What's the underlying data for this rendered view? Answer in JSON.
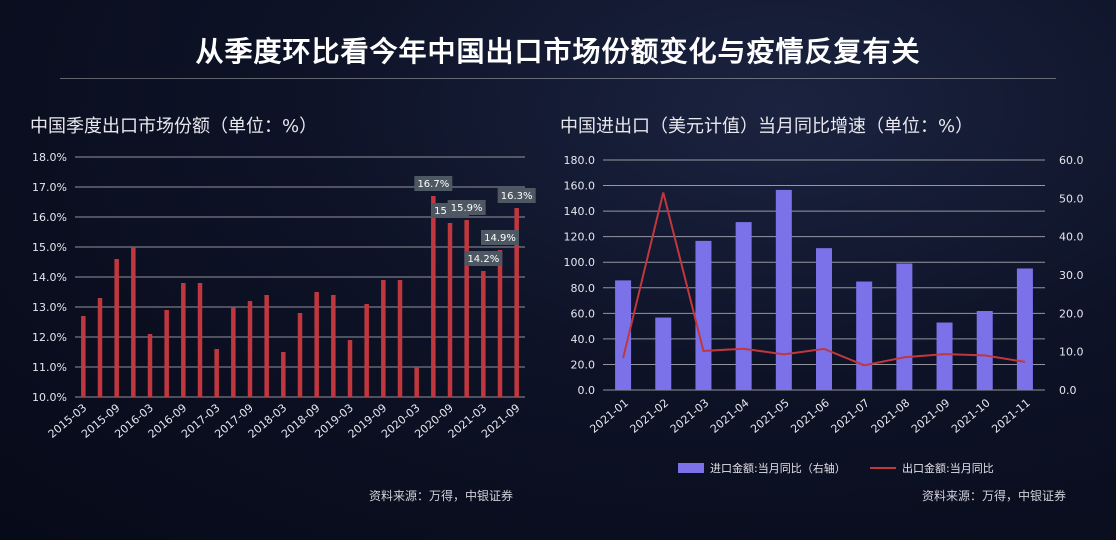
{
  "page": {
    "title": "从季度环比看今年中国出口市场份额变化与疫情反复有关"
  },
  "left_panel": {
    "title": "中国季度出口市场份额（单位：%）",
    "source": "资料来源：万得，中银证券"
  },
  "right_panel": {
    "title": "中国进出口（美元计值）当月同比增速（单位：%）",
    "source": "资料来源：万得，中银证券",
    "legend_bar": "进口金额:当月同比（右轴）",
    "legend_line": "出口金额:当月同比"
  },
  "colors": {
    "bar_left": "#c1373e",
    "bar_right": "#7b72e9",
    "line": "#c1373e",
    "label_box": "#4e5863"
  },
  "chart_data": [
    {
      "type": "bar",
      "title": "中国季度出口市场份额（单位：%）",
      "categories": [
        "2015-03",
        "2015-06",
        "2015-09",
        "2015-12",
        "2016-03",
        "2016-06",
        "2016-09",
        "2016-12",
        "2017-03",
        "2017-06",
        "2017-09",
        "2017-12",
        "2018-03",
        "2018-06",
        "2018-09",
        "2018-12",
        "2019-03",
        "2019-06",
        "2019-09",
        "2019-12",
        "2020-03",
        "2020-06",
        "2020-09",
        "2020-12",
        "2021-03",
        "2021-06",
        "2021-09"
      ],
      "tick_labels": [
        "2015-03",
        "2015-09",
        "2016-03",
        "2016-09",
        "2017-03",
        "2017-09",
        "2018-03",
        "2018-09",
        "2019-03",
        "2019-09",
        "2020-03",
        "2020-09",
        "2021-03",
        "2021-09"
      ],
      "values": [
        12.7,
        13.3,
        14.6,
        15.0,
        12.1,
        12.9,
        13.8,
        13.8,
        11.6,
        13.0,
        13.2,
        13.4,
        11.5,
        12.8,
        13.5,
        13.4,
        11.9,
        13.1,
        13.9,
        13.9,
        11.0,
        16.7,
        15.8,
        15.9,
        14.2,
        14.9,
        16.3
      ],
      "data_labels": [
        {
          "index": 21,
          "text": "16.7%"
        },
        {
          "index": 22,
          "text": "15.8%"
        },
        {
          "index": 23,
          "text": "15.9%"
        },
        {
          "index": 24,
          "text": "14.2%"
        },
        {
          "index": 25,
          "text": "14.9%"
        },
        {
          "index": 26,
          "text": "16.3%"
        }
      ],
      "ylim": [
        10.0,
        18.0
      ],
      "yticks": [
        "10.0%",
        "11.0%",
        "12.0%",
        "13.0%",
        "14.0%",
        "15.0%",
        "16.0%",
        "17.0%",
        "18.0%"
      ],
      "grid": true
    },
    {
      "type": "bar+line",
      "title": "中国进出口（美元计值）当月同比增速（单位：%）",
      "categories": [
        "2021-01",
        "2021-02",
        "2021-03",
        "2021-04",
        "2021-05",
        "2021-06",
        "2021-07",
        "2021-08",
        "2021-09",
        "2021-10",
        "2021-11"
      ],
      "series": [
        {
          "name": "进口金额:当月同比（右轴）",
          "type": "bar",
          "axis": "right",
          "values": [
            28.6,
            18.9,
            38.9,
            43.8,
            52.2,
            37.0,
            28.3,
            33.0,
            17.6,
            20.6,
            31.7
          ]
        },
        {
          "name": "出口金额:当月同比",
          "type": "line",
          "axis": "left",
          "values": [
            24.9,
            154.6,
            30.6,
            32.3,
            27.9,
            32.2,
            19.3,
            25.6,
            28.1,
            27.1,
            22.0
          ]
        }
      ],
      "ylim_left": [
        0,
        180
      ],
      "ylim_right": [
        0,
        60
      ],
      "yticks_left": [
        "0.0",
        "20.0",
        "40.0",
        "60.0",
        "80.0",
        "100.0",
        "120.0",
        "140.0",
        "160.0",
        "180.0"
      ],
      "yticks_right": [
        "0.0",
        "10.0",
        "20.0",
        "30.0",
        "40.0",
        "50.0",
        "60.0"
      ],
      "legend": "bottom",
      "grid": true
    }
  ]
}
